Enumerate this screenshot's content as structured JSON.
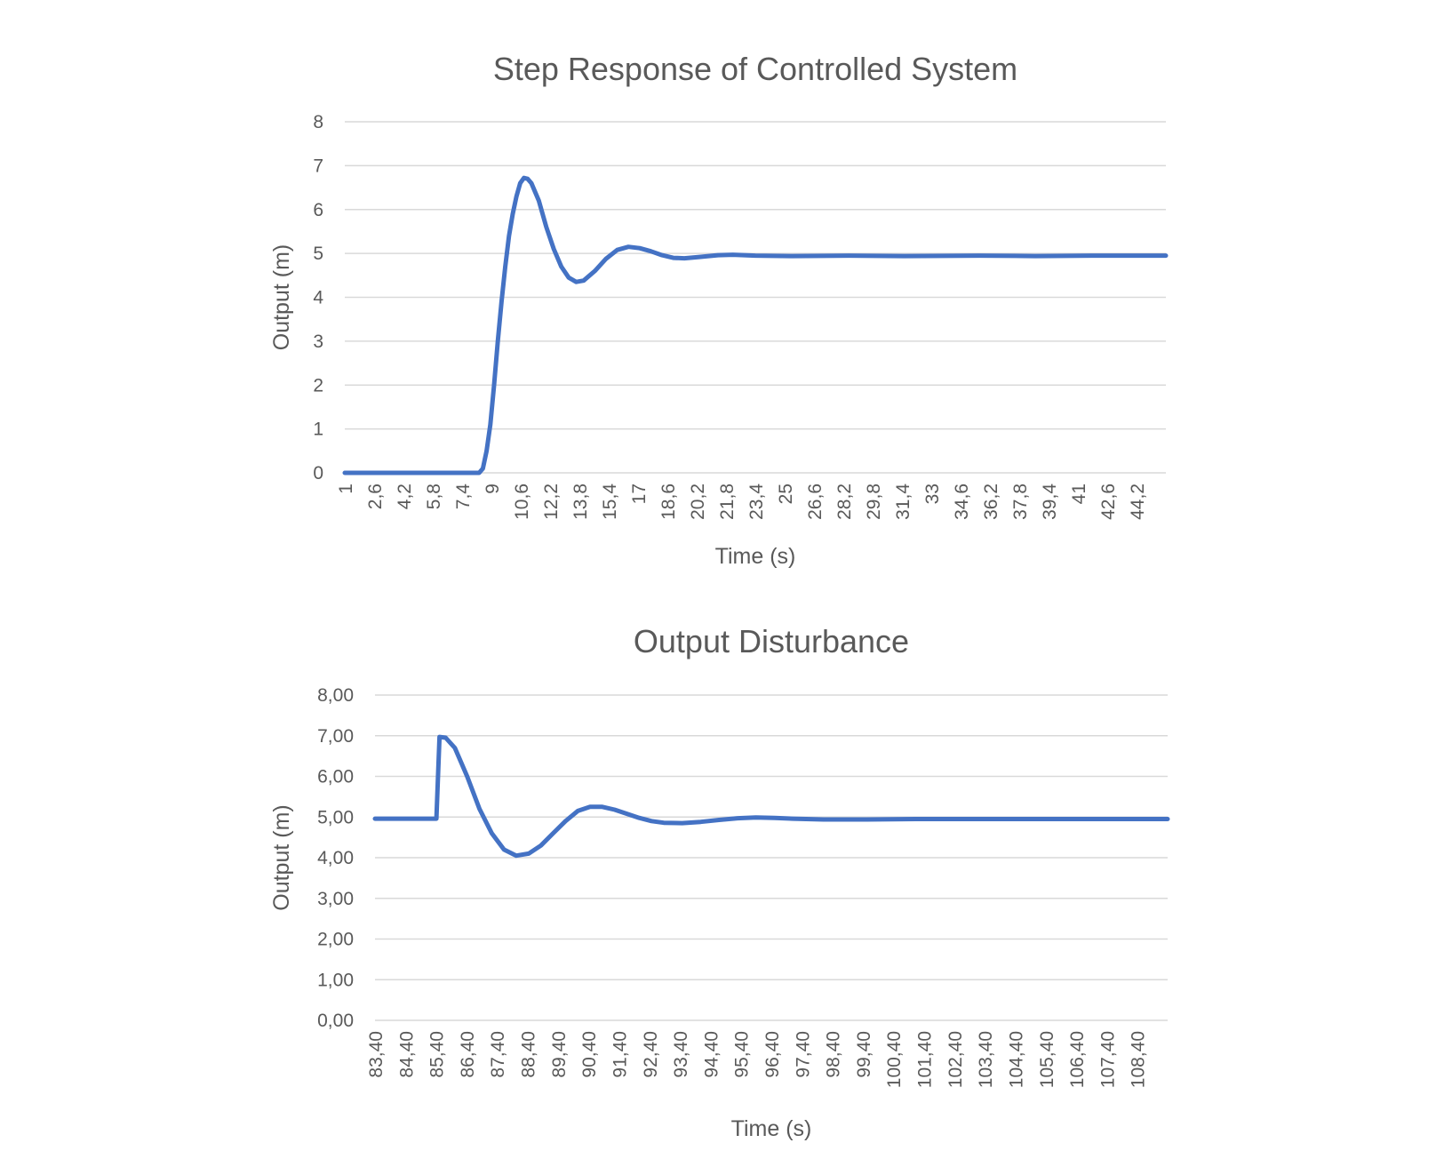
{
  "colors": {
    "series": "#4472c4",
    "text": "#595959",
    "grid": "#d9d9d9",
    "background": "#ffffff"
  },
  "chart_data": [
    {
      "type": "line",
      "title": "Step Response of Controlled System",
      "xlabel": "Time (s)",
      "ylabel": "Output (m)",
      "ylim": [
        0,
        8
      ],
      "yticks": [
        "0",
        "1",
        "2",
        "3",
        "4",
        "5",
        "6",
        "7",
        "8"
      ],
      "xlim": [
        1,
        45
      ],
      "xticks": [
        "1",
        "2,6",
        "4,2",
        "5,8",
        "7,4",
        "9",
        "10,6",
        "12,2",
        "13,8",
        "15,4",
        "17",
        "18,6",
        "20,2",
        "21,8",
        "23,4",
        "25",
        "26,6",
        "28,2",
        "29,8",
        "31,4",
        "33",
        "34,6",
        "36,2",
        "37,8",
        "39,4",
        "41",
        "42,6",
        "44,2"
      ],
      "grid": true,
      "legend": "none",
      "series": [
        {
          "points": [
            [
              1,
              0
            ],
            [
              8.2,
              0
            ],
            [
              8.4,
              0.1
            ],
            [
              8.6,
              0.5
            ],
            [
              8.8,
              1.1
            ],
            [
              9.0,
              2.0
            ],
            [
              9.2,
              3.0
            ],
            [
              9.4,
              3.9
            ],
            [
              9.6,
              4.7
            ],
            [
              9.8,
              5.4
            ],
            [
              10.0,
              5.9
            ],
            [
              10.2,
              6.3
            ],
            [
              10.4,
              6.6
            ],
            [
              10.6,
              6.72
            ],
            [
              10.8,
              6.7
            ],
            [
              11.0,
              6.6
            ],
            [
              11.4,
              6.2
            ],
            [
              11.8,
              5.6
            ],
            [
              12.2,
              5.1
            ],
            [
              12.6,
              4.7
            ],
            [
              13.0,
              4.45
            ],
            [
              13.4,
              4.35
            ],
            [
              13.8,
              4.38
            ],
            [
              14.4,
              4.6
            ],
            [
              15.0,
              4.88
            ],
            [
              15.6,
              5.08
            ],
            [
              16.2,
              5.15
            ],
            [
              16.8,
              5.12
            ],
            [
              17.4,
              5.05
            ],
            [
              18.0,
              4.96
            ],
            [
              18.6,
              4.9
            ],
            [
              19.2,
              4.89
            ],
            [
              20.0,
              4.92
            ],
            [
              21.0,
              4.96
            ],
            [
              21.8,
              4.97
            ],
            [
              23.0,
              4.95
            ],
            [
              25.0,
              4.94
            ],
            [
              28.0,
              4.95
            ],
            [
              31.0,
              4.94
            ],
            [
              35.0,
              4.95
            ],
            [
              38.0,
              4.94
            ],
            [
              41.0,
              4.95
            ],
            [
              45.0,
              4.95
            ]
          ]
        }
      ]
    },
    {
      "type": "line",
      "title": "Output Disturbance",
      "xlabel": "Time (s)",
      "ylabel": "Output (m)",
      "ylim": [
        0,
        8
      ],
      "yticks": [
        "0,00",
        "1,00",
        "2,00",
        "3,00",
        "4,00",
        "5,00",
        "6,00",
        "7,00",
        "8,00"
      ],
      "xlim": [
        83.4,
        109.2
      ],
      "xticks": [
        "83,40",
        "84,40",
        "85,40",
        "86,40",
        "87,40",
        "88,40",
        "89,40",
        "90,40",
        "91,40",
        "92,40",
        "93,40",
        "94,40",
        "95,40",
        "96,40",
        "97,40",
        "98,40",
        "99,40",
        "100,40",
        "101,40",
        "102,40",
        "103,40",
        "104,40",
        "105,40",
        "106,40",
        "107,40",
        "108,40"
      ],
      "grid": true,
      "legend": "none",
      "series": [
        {
          "points": [
            [
              83.4,
              4.96
            ],
            [
              85.4,
              4.96
            ],
            [
              85.5,
              6.97
            ],
            [
              85.7,
              6.95
            ],
            [
              86.0,
              6.7
            ],
            [
              86.4,
              6.0
            ],
            [
              86.8,
              5.2
            ],
            [
              87.2,
              4.6
            ],
            [
              87.6,
              4.2
            ],
            [
              88.0,
              4.05
            ],
            [
              88.4,
              4.1
            ],
            [
              88.8,
              4.3
            ],
            [
              89.2,
              4.6
            ],
            [
              89.6,
              4.9
            ],
            [
              90.0,
              5.15
            ],
            [
              90.4,
              5.25
            ],
            [
              90.8,
              5.25
            ],
            [
              91.2,
              5.18
            ],
            [
              91.6,
              5.08
            ],
            [
              92.0,
              4.98
            ],
            [
              92.4,
              4.9
            ],
            [
              92.8,
              4.86
            ],
            [
              93.4,
              4.85
            ],
            [
              94.0,
              4.88
            ],
            [
              94.6,
              4.93
            ],
            [
              95.2,
              4.97
            ],
            [
              95.8,
              4.99
            ],
            [
              96.4,
              4.98
            ],
            [
              97.0,
              4.96
            ],
            [
              98.0,
              4.94
            ],
            [
              99.4,
              4.94
            ],
            [
              101.0,
              4.95
            ],
            [
              109.2,
              4.95
            ]
          ]
        }
      ]
    }
  ]
}
